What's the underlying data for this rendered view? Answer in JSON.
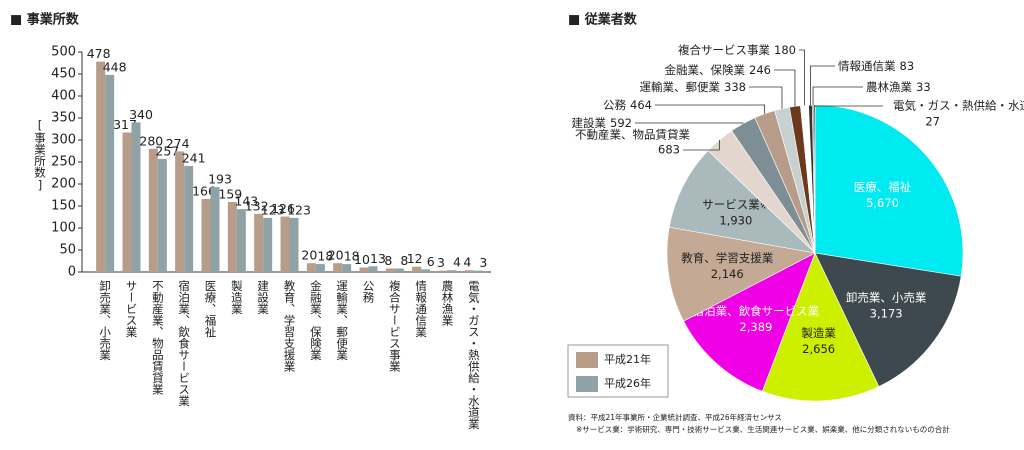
{
  "chart_data": [
    {
      "type": "bar",
      "title": "■ 事業所数",
      "y_label": "[事業所数]",
      "categories": [
        "卸売業、小売業",
        "サービス業",
        "不動産業、物品賃貸業",
        "宿泊業、飲食サービス業",
        "医療、福祉",
        "製造業",
        "建設業",
        "教育、学習支援業",
        "金融業、保険業",
        "運輸業、郵便業",
        "公務",
        "複合サービス事業",
        "情報通信業",
        "農林漁業",
        "電気・ガス・熱供給・水道業"
      ],
      "series": [
        {
          "name": "平成21年",
          "color": "#b89c8a",
          "values": [
            478,
            317,
            280,
            274,
            166,
            159,
            132,
            126,
            20,
            20,
            10,
            8,
            12,
            3,
            4
          ]
        },
        {
          "name": "平成26年",
          "color": "#8fa3a6",
          "values": [
            448,
            340,
            257,
            241,
            193,
            143,
            123,
            123,
            18,
            18,
            13,
            8,
            6,
            4,
            3
          ]
        }
      ],
      "ylim": [
        0,
        500
      ],
      "yticks": [
        0,
        50,
        100,
        150,
        200,
        250,
        300,
        350,
        400,
        450,
        500
      ]
    },
    {
      "type": "pie",
      "title": "■ 従業者数",
      "categories": [
        "医療、福祉",
        "卸売業、小売業",
        "製造業",
        "宿泊業、飲食サービス業",
        "教育、学習支援業",
        "サービス業※",
        "不動産業、物品賃貸業",
        "建設業",
        "公務",
        "運輸業、郵便業",
        "金融業、保険業",
        "複合サービス事業",
        "情報通信業",
        "農林漁業",
        "電気・ガス・熱供給・水道業"
      ],
      "values": [
        5670,
        3173,
        2656,
        2389,
        2146,
        1930,
        683,
        592,
        464,
        338,
        246,
        180,
        83,
        33,
        27
      ],
      "value_labels": [
        "5,670",
        "3,173",
        "2,656",
        "2,389",
        "2,146",
        "1,930",
        "683",
        "592",
        "464",
        "338",
        "246",
        "180",
        "83",
        "33",
        "27"
      ],
      "colors": [
        "#00eaf2",
        "#3d494e",
        "#ccf000",
        "#f000e6",
        "#c4a994",
        "#a9b9bc",
        "#e2d6ce",
        "#7d8f94",
        "#b89c8a",
        "#c9d0d0",
        "#6b3a1e",
        "#ffffff",
        "#2f3436",
        "#8d6b55",
        "#1a1a1a"
      ]
    }
  ],
  "footnotes": [
    "資料：平成21年事業所・企業統計調査、平成26年経済センサス",
    "※サービス業：学術研究、専門・技術サービス業、生活関連サービス業、娯楽業、他に分類されないものの合計"
  ]
}
